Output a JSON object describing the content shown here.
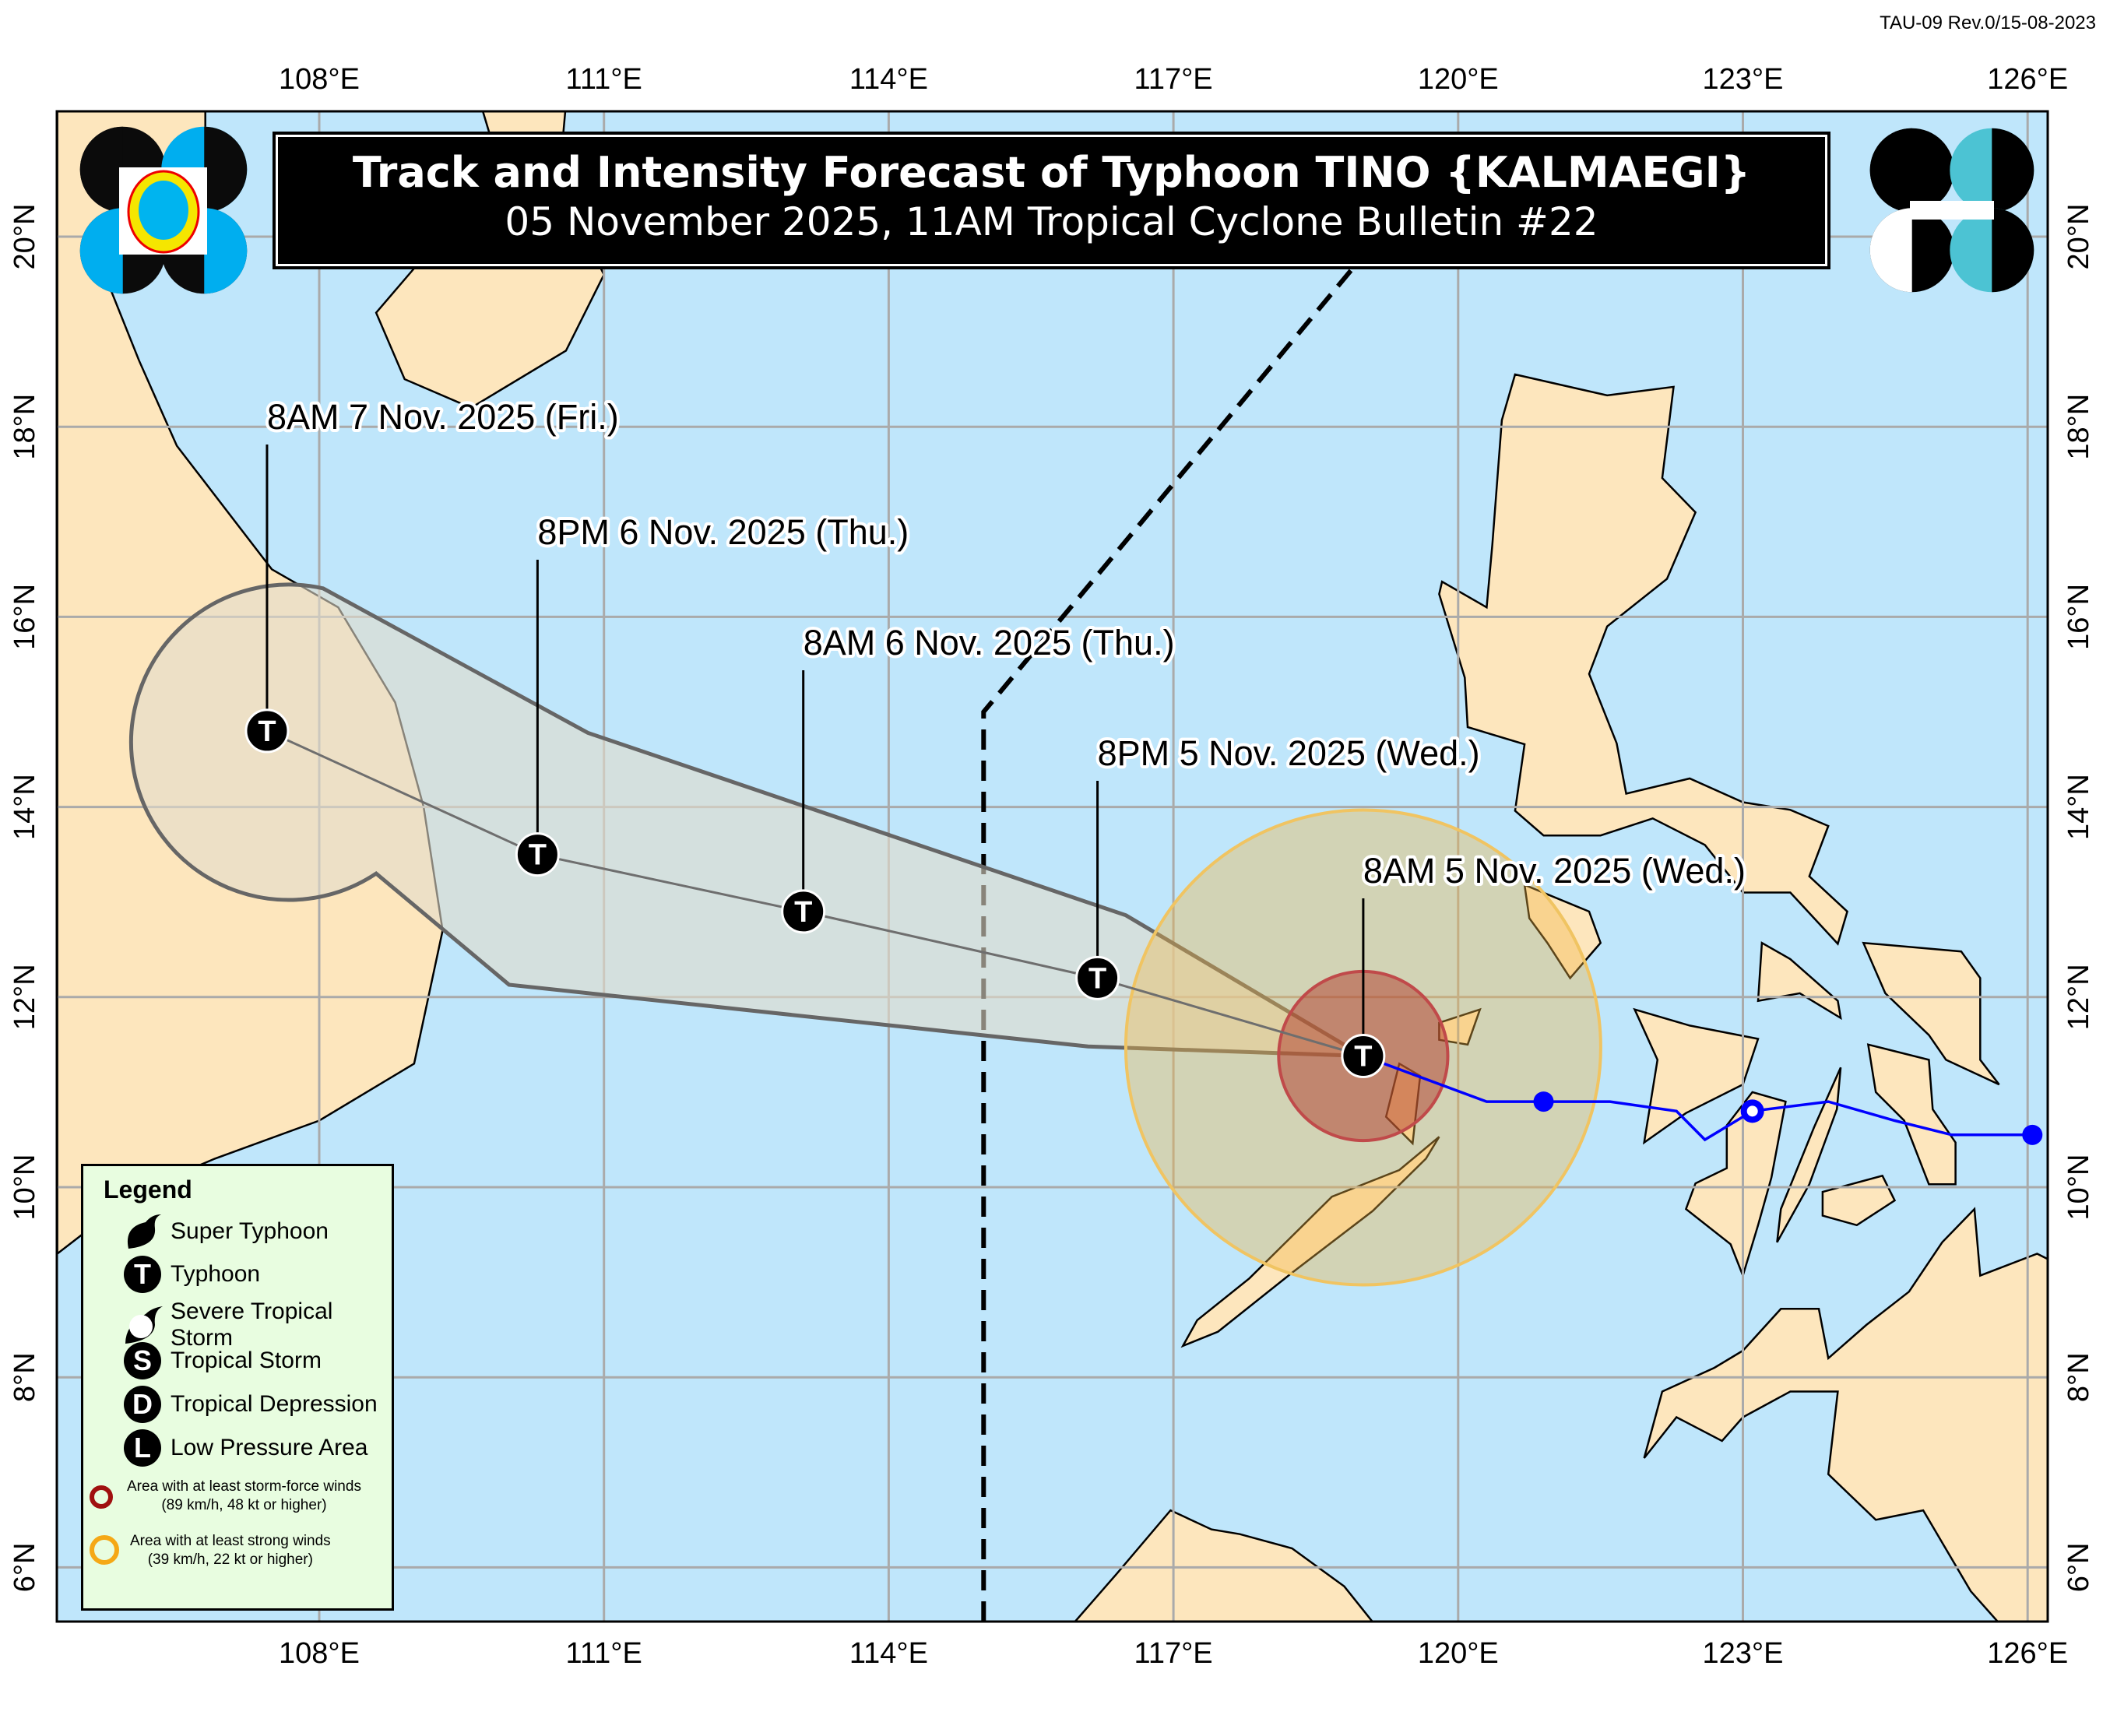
{
  "revision": "TAU-09 Rev.0/15-08-2023",
  "title": "Track and Intensity Forecast of Typhoon TINO {KALMAEGI}",
  "subtitle": "05 November 2025, 11AM Tropical Cyclone Bulletin #22",
  "axes": {
    "lon_ticks": [
      108,
      111,
      114,
      117,
      120,
      123,
      126
    ],
    "lon_labels": [
      "108°E",
      "111°E",
      "114°E",
      "117°E",
      "120°E",
      "123°E",
      "126°E"
    ],
    "lat_ticks": [
      20,
      18,
      16,
      14,
      12,
      10,
      8,
      6
    ],
    "lat_labels": [
      "20°N",
      "18°N",
      "16°N",
      "14°N",
      "12°N",
      "10°N",
      "8°N",
      "6°N"
    ],
    "lon_range": [
      105.24,
      126.2
    ],
    "lat_range": [
      5.43,
      21.32
    ]
  },
  "forecast_points": [
    {
      "label": "8AM 5 Nov. 2025 (Wed.)",
      "lon": 119.0,
      "lat": 11.38,
      "category": "Typhoon",
      "symbol": "T"
    },
    {
      "label": "8PM 5 Nov. 2025 (Wed.)",
      "lon": 116.2,
      "lat": 12.2,
      "category": "Typhoon",
      "symbol": "T"
    },
    {
      "label": "8AM 6 Nov. 2025 (Thu.)",
      "lon": 113.1,
      "lat": 12.9,
      "category": "Typhoon",
      "symbol": "T"
    },
    {
      "label": "8PM 6 Nov. 2025 (Thu.)",
      "lon": 110.3,
      "lat": 13.5,
      "category": "Typhoon",
      "symbol": "T"
    },
    {
      "label": "8AM 7 Nov. 2025 (Fri.)",
      "lon": 107.45,
      "lat": 14.8,
      "category": "Typhoon",
      "symbol": "T"
    }
  ],
  "past_track": [
    {
      "lon": 126.05,
      "lat": 10.55,
      "marker": "filled"
    },
    {
      "lon": 125.2,
      "lat": 10.55
    },
    {
      "lon": 124.6,
      "lat": 10.7
    },
    {
      "lon": 123.9,
      "lat": 10.9
    },
    {
      "lon": 123.1,
      "lat": 10.8,
      "marker": "open"
    },
    {
      "lon": 122.6,
      "lat": 10.5
    },
    {
      "lon": 122.3,
      "lat": 10.8
    },
    {
      "lon": 121.6,
      "lat": 10.9
    },
    {
      "lon": 120.9,
      "lat": 10.9,
      "marker": "filled"
    },
    {
      "lon": 120.3,
      "lat": 10.9
    },
    {
      "lon": 119.0,
      "lat": 11.38
    }
  ],
  "wind_areas": {
    "storm_force_radius_deg": 0.89,
    "strong_wind_radius_deg": 2.5
  },
  "par_boundary": [
    {
      "lon": 115,
      "lat": 5.43
    },
    {
      "lon": 115,
      "lat": 15
    },
    {
      "lon": 120,
      "lat": 21
    }
  ],
  "legend": {
    "title": "Legend",
    "items": [
      {
        "label": "Super Typhoon",
        "icon": "super-typhoon-icon"
      },
      {
        "label": "Typhoon",
        "icon": "typhoon-icon",
        "letter": "T"
      },
      {
        "label": "Severe Tropical Storm",
        "icon": "severe-tropical-storm-icon"
      },
      {
        "label": "Tropical Storm",
        "icon": "tropical-storm-icon",
        "letter": "S"
      },
      {
        "label": "Tropical Depression",
        "icon": "tropical-depression-icon",
        "letter": "D"
      },
      {
        "label": "Low Pressure Area",
        "icon": "low-pressure-area-icon",
        "letter": "L"
      }
    ],
    "storm_force": {
      "line1": "Area with at least storm-force winds",
      "line2": "(89 km/h, 48 kt or higher)"
    },
    "strong_winds": {
      "line1": "Area with at least strong winds",
      "line2": "(39 km/h, 22 kt or higher)"
    }
  },
  "colors": {
    "ocean": "#bfe6fb",
    "land": "#fde6bd",
    "grid": "#aaaaaa",
    "past_track": "#0000ff",
    "storm_force": "#a01010",
    "strong_winds": "#f5a816",
    "cone_outline": "#666666",
    "legend_bg": "#e8fde0"
  }
}
